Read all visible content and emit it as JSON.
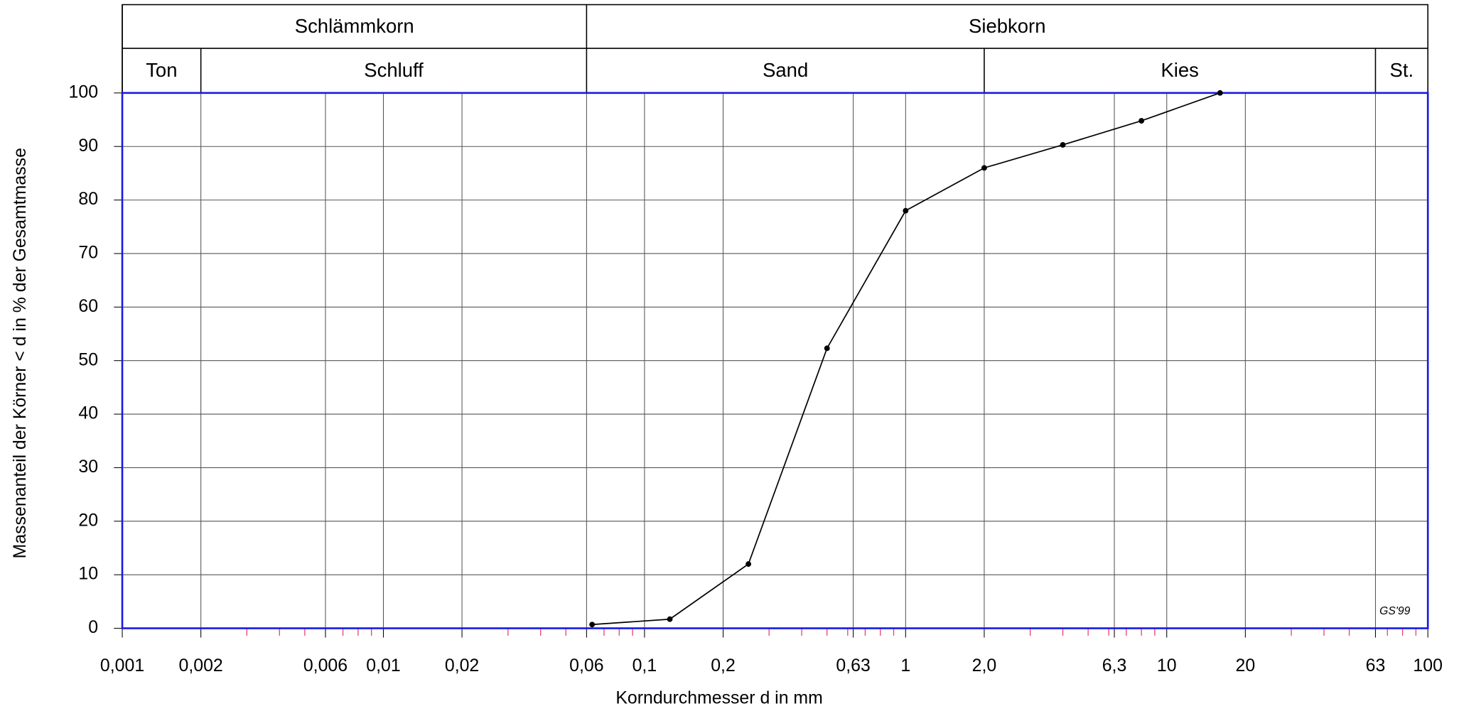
{
  "chart_data": {
    "type": "line",
    "xlabel": "Korndurchmesser d in mm",
    "ylabel": "Massenanteil der Körner < d in % der Gesamtmasse",
    "annotation": "GS'99",
    "xlog": true,
    "grid": true,
    "xlim": [
      0.001,
      100
    ],
    "ylim": [
      0,
      100
    ],
    "xticks": [
      {
        "value": 0.001,
        "label": "0,001"
      },
      {
        "value": 0.002,
        "label": "0,002"
      },
      {
        "value": 0.006,
        "label": "0,006"
      },
      {
        "value": 0.01,
        "label": "0,01"
      },
      {
        "value": 0.02,
        "label": "0,02"
      },
      {
        "value": 0.06,
        "label": "0,06"
      },
      {
        "value": 0.1,
        "label": "0,1"
      },
      {
        "value": 0.2,
        "label": "0,2"
      },
      {
        "value": 0.63,
        "label": "0,63"
      },
      1,
      {
        "value": 2,
        "label": "2,0"
      },
      {
        "value": 6.3,
        "label": "6,3"
      },
      10,
      20,
      63,
      100
    ],
    "minor_xticks": [
      0.003,
      0.004,
      0.005,
      0.007,
      0.008,
      0.009,
      0.03,
      0.04,
      0.05,
      0.07,
      0.08,
      0.09,
      0.3,
      0.4,
      0.5,
      0.6,
      0.7,
      0.8,
      0.9,
      3,
      4,
      5,
      6,
      7,
      8,
      9,
      30,
      40,
      50,
      70,
      80,
      90
    ],
    "yticks": [
      0,
      10,
      20,
      30,
      40,
      50,
      60,
      70,
      80,
      90,
      100
    ],
    "header_top": [
      {
        "label": "Schlämmkorn",
        "from": 0.001,
        "to": 0.06
      },
      {
        "label": "Siebkorn",
        "from": 0.06,
        "to": 100
      }
    ],
    "header_bottom": [
      {
        "label": "Ton",
        "from": 0.001,
        "to": 0.002
      },
      {
        "label": "Schluff",
        "from": 0.002,
        "to": 0.06
      },
      {
        "label": "Sand",
        "from": 0.06,
        "to": 2
      },
      {
        "label": "Kies",
        "from": 2,
        "to": 63
      },
      {
        "label": "St.",
        "from": 63,
        "to": 100
      }
    ],
    "series": [
      {
        "color": "#000000",
        "x": [
          0.063,
          0.125,
          0.25,
          0.5,
          1,
          2,
          4,
          8,
          16
        ],
        "values": [
          0.7,
          1.7,
          12,
          52.3,
          78,
          86,
          90.3,
          94.8,
          100
        ]
      }
    ]
  }
}
